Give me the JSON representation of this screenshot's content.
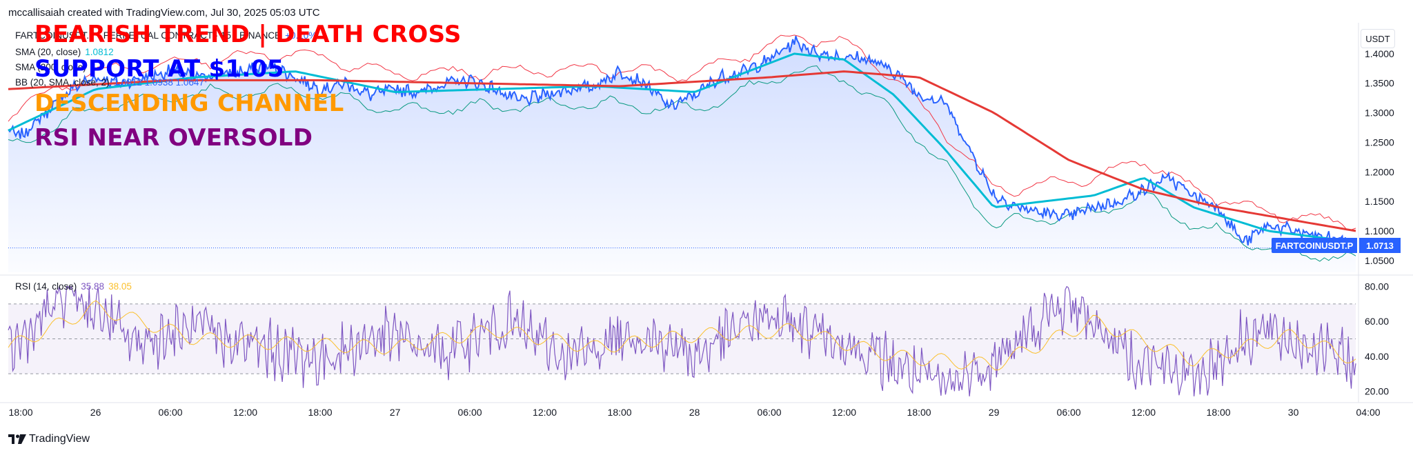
{
  "credit": "mccallisaiah created with TradingView.com, Jul 30, 2025 05:03 UTC",
  "legend": {
    "symbol_row": "FARTCOINUSDT.P · PERPETUAL CONTRACT · 15 · BINANCE",
    "symbol_change": "+0.10%",
    "sma20_label": "SMA (20, close)",
    "sma20_value": "1.0812",
    "sma200_label": "SMA (200, close)",
    "bb_label": "BB (20, SMA, close, 2)",
    "bb_values": "1.0812  1.0938  1.0647"
  },
  "overlays": {
    "line1": "BEARISH TREND | DEATH CROSS",
    "line2": "SUPPORT AT $1.05",
    "line3": "DESCENDING CHANNEL",
    "line4": "RSI NEAR OVERSOLD"
  },
  "rsi_legend": {
    "label": "RSI (14, close)",
    "value": "35.88",
    "ma_value": "38.05"
  },
  "currency_button": "USDT",
  "last_price_tag": {
    "symbol": "FARTCOINUSDT.P",
    "price": "1.0713"
  },
  "logo_text": "TradingView",
  "colors": {
    "price_line": "#2962ff",
    "sma20": "#00bcd4",
    "sma200": "#e53935",
    "bb_upper": "#f23645",
    "bb_lower": "#089981",
    "rsi_line": "#7e57c2",
    "rsi_ma": "#fbc02d",
    "overlay1": "#ff0000",
    "overlay2": "#0000ff",
    "overlay3": "#ff9900",
    "overlay4": "#800080"
  },
  "chart_data": [
    {
      "type": "line",
      "title": "",
      "xlabel": "",
      "ylabel": "",
      "ylim": [
        1.03,
        1.45
      ],
      "y_ticks": [
        "1.4000",
        "1.3500",
        "1.3000",
        "1.2500",
        "1.2000",
        "1.1500",
        "1.1000",
        "1.0500"
      ],
      "x_ticks": [
        "18:00",
        "26",
        "06:00",
        "12:00",
        "18:00",
        "27",
        "06:00",
        "12:00",
        "18:00",
        "28",
        "06:00",
        "12:00",
        "18:00",
        "29",
        "06:00",
        "12:00",
        "18:00",
        "30",
        "04:00"
      ],
      "x_start": "Jul 25 17:00",
      "x_end": "Jul 30 05:00",
      "last_price": 1.0713,
      "series": [
        {
          "name": "FARTCOINUSDT.P",
          "x": [
            "Jul 25 17:00",
            "Jul 25 18:00",
            "Jul 25 20:00",
            "Jul 25 22:00",
            "Jul 26 00:00",
            "Jul 26 02:00",
            "Jul 26 04:00",
            "Jul 26 06:00",
            "Jul 26 08:00",
            "Jul 26 10:00",
            "Jul 26 12:00",
            "Jul 26 14:00",
            "Jul 26 16:00",
            "Jul 26 18:00",
            "Jul 26 20:00",
            "Jul 26 22:00",
            "Jul 27 00:00",
            "Jul 27 02:00",
            "Jul 27 04:00",
            "Jul 27 06:00",
            "Jul 27 08:00",
            "Jul 27 10:00",
            "Jul 27 12:00",
            "Jul 27 14:00",
            "Jul 27 16:00",
            "Jul 27 18:00",
            "Jul 27 20:00",
            "Jul 27 22:00",
            "Jul 28 00:00",
            "Jul 28 02:00",
            "Jul 28 04:00",
            "Jul 28 06:00",
            "Jul 28 08:00",
            "Jul 28 10:00",
            "Jul 28 12:00",
            "Jul 28 14:00",
            "Jul 28 16:00",
            "Jul 28 18:00",
            "Jul 28 20:00",
            "Jul 28 22:00",
            "Jul 29 00:00",
            "Jul 29 02:00",
            "Jul 29 04:00",
            "Jul 29 06:00",
            "Jul 29 08:00",
            "Jul 29 10:00",
            "Jul 29 12:00",
            "Jul 29 14:00",
            "Jul 29 16:00",
            "Jul 29 18:00",
            "Jul 29 20:00",
            "Jul 29 22:00",
            "Jul 30 00:00",
            "Jul 30 02:00",
            "Jul 30 04:00",
            "Jul 30 05:00"
          ],
          "values": [
            1.27,
            1.26,
            1.3,
            1.34,
            1.36,
            1.35,
            1.36,
            1.37,
            1.36,
            1.365,
            1.37,
            1.38,
            1.36,
            1.34,
            1.35,
            1.33,
            1.34,
            1.335,
            1.35,
            1.355,
            1.34,
            1.32,
            1.33,
            1.34,
            1.345,
            1.37,
            1.35,
            1.31,
            1.33,
            1.36,
            1.37,
            1.39,
            1.42,
            1.4,
            1.395,
            1.39,
            1.37,
            1.33,
            1.32,
            1.24,
            1.16,
            1.14,
            1.13,
            1.125,
            1.14,
            1.15,
            1.17,
            1.19,
            1.16,
            1.14,
            1.08,
            1.11,
            1.1,
            1.09,
            1.085,
            1.0713
          ]
        },
        {
          "name": "SMA (20, close)",
          "x": [
            "Jul 25 17:00",
            "Jul 26 00:00",
            "Jul 26 08:00",
            "Jul 26 16:00",
            "Jul 27 00:00",
            "Jul 27 08:00",
            "Jul 27 16:00",
            "Jul 28 00:00",
            "Jul 28 08:00",
            "Jul 28 12:00",
            "Jul 28 16:00",
            "Jul 28 20:00",
            "Jul 29 00:00",
            "Jul 29 08:00",
            "Jul 29 12:00",
            "Jul 29 16:00",
            "Jul 29 22:00",
            "Jul 30 05:00"
          ],
          "values": [
            1.27,
            1.34,
            1.36,
            1.37,
            1.335,
            1.34,
            1.345,
            1.335,
            1.4,
            1.39,
            1.33,
            1.24,
            1.14,
            1.16,
            1.19,
            1.14,
            1.1,
            1.0812
          ]
        },
        {
          "name": "SMA (200, close)",
          "x": [
            "Jul 25 17:00",
            "Jul 26 06:00",
            "Jul 26 18:00",
            "Jul 27 06:00",
            "Jul 27 18:00",
            "Jul 28 06:00",
            "Jul 28 12:00",
            "Jul 28 18:00",
            "Jul 29 00:00",
            "Jul 29 06:00",
            "Jul 29 12:00",
            "Jul 29 18:00",
            "Jul 30 05:00"
          ],
          "values": [
            1.34,
            1.355,
            1.355,
            1.35,
            1.345,
            1.36,
            1.37,
            1.36,
            1.3,
            1.22,
            1.17,
            1.14,
            1.1
          ]
        }
      ]
    },
    {
      "type": "line",
      "title": "",
      "ylim": [
        15,
        85
      ],
      "y_ticks": [
        "80.00",
        "60.00",
        "40.00",
        "20.00"
      ],
      "bands": [
        30,
        50,
        70
      ],
      "series": [
        {
          "name": "RSI (14, close)",
          "x": [
            "Jul 25 17:00",
            "Jul 25 22:00",
            "Jul 26 03:00",
            "Jul 26 08:00",
            "Jul 26 13:00",
            "Jul 26 18:00",
            "Jul 26 23:00",
            "Jul 27 04:00",
            "Jul 27 09:00",
            "Jul 27 14:00",
            "Jul 27 19:00",
            "Jul 28 00:00",
            "Jul 28 05:00",
            "Jul 28 10:00",
            "Jul 28 15:00",
            "Jul 28 20:00",
            "Jul 29 01:00",
            "Jul 29 06:00",
            "Jul 29 11:00",
            "Jul 29 16:00",
            "Jul 29 21:00",
            "Jul 30 02:00",
            "Jul 30 05:00"
          ],
          "values": [
            42,
            78,
            48,
            55,
            45,
            38,
            52,
            42,
            60,
            38,
            55,
            40,
            62,
            55,
            38,
            22,
            42,
            72,
            40,
            28,
            55,
            45,
            35.88
          ]
        },
        {
          "name": "RSI MA",
          "x": [
            "Jul 25 17:00",
            "Jul 26 00:00",
            "Jul 26 08:00",
            "Jul 26 16:00",
            "Jul 27 00:00",
            "Jul 27 08:00",
            "Jul 27 16:00",
            "Jul 28 00:00",
            "Jul 28 08:00",
            "Jul 28 16:00",
            "Jul 29 00:00",
            "Jul 29 08:00",
            "Jul 29 16:00",
            "Jul 30 00:00",
            "Jul 30 05:00"
          ],
          "values": [
            45,
            68,
            50,
            47,
            45,
            55,
            45,
            52,
            55,
            40,
            35,
            60,
            38,
            52,
            38.05
          ]
        }
      ]
    }
  ]
}
